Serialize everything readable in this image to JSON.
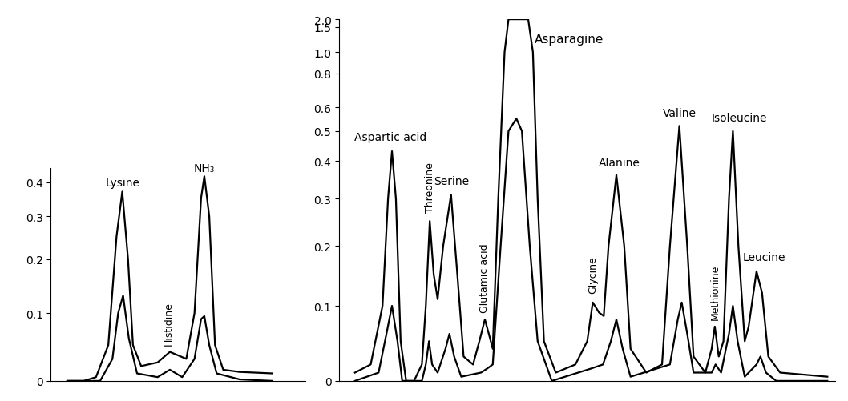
{
  "chart_data": [
    {
      "type": "line",
      "xlim": [
        20,
        330
      ],
      "xticks": [],
      "ylim": [
        0,
        0.45
      ],
      "yticks": [
        0,
        0.1,
        0.2,
        0.3,
        0.4
      ],
      "tick_labels": "y",
      "grid": false,
      "series": [
        {
          "color": "#000000",
          "x": [
            40,
            60,
            75,
            90,
            100,
            107,
            114,
            120,
            130,
            150,
            165,
            175,
            185,
            195,
            203,
            207,
            213,
            220,
            230,
            250,
            290
          ],
          "values": [
            0,
            0,
            0.005,
            0.05,
            0.25,
            0.37,
            0.2,
            0.05,
            0.02,
            0.025,
            0.04,
            0.035,
            0.03,
            0.1,
            0.35,
            0.42,
            0.3,
            0.05,
            0.015,
            0.012,
            0.01
          ]
        },
        {
          "color": "#000000",
          "x": [
            40,
            80,
            95,
            102,
            108,
            115,
            125,
            150,
            165,
            180,
            195,
            203,
            207,
            213,
            222,
            250,
            290
          ],
          "values": [
            0,
            0,
            0.03,
            0.1,
            0.13,
            0.06,
            0.01,
            0.005,
            0.015,
            0.005,
            0.03,
            0.09,
            0.095,
            0.05,
            0.01,
            0.002,
            0
          ]
        }
      ],
      "annotations": [
        {
          "text": "Lysine",
          "x": 108,
          "y": 0.38
        },
        {
          "text": "Histidine",
          "x": 163,
          "y": 0.05
        },
        {
          "text": "NH₃",
          "x": 207,
          "y": 0.43
        }
      ]
    },
    {
      "type": "line",
      "xlim": [
        420,
        1050
      ],
      "xticks": [],
      "ylim": [
        0,
        2.0
      ],
      "yticks": [
        0,
        0.1,
        0.2,
        0.3,
        0.4,
        0.5,
        0.6,
        0.8,
        1.0,
        1.5,
        2.0
      ],
      "tick_labels": "y",
      "grid": false,
      "series": [
        {
          "color": "#000000",
          "x": [
            440,
            460,
            475,
            482,
            487,
            492,
            498,
            505,
            515,
            525,
            530,
            535,
            540,
            545,
            552,
            562,
            570,
            578,
            590,
            598,
            605,
            610,
            615,
            622,
            630,
            635,
            660,
            666,
            672,
            680,
            695,
            720,
            735,
            742,
            750,
            756,
            762,
            772,
            782,
            790,
            810,
            830,
            840,
            852,
            862,
            870,
            885,
            893,
            897,
            902,
            908,
            915,
            920,
            927,
            935,
            940,
            950,
            957,
            965,
            980,
            1040
          ],
          "values": [
            0.01,
            0.02,
            0.1,
            0.3,
            0.43,
            0.3,
            0.05,
            0.0,
            0.0,
            0.02,
            0.1,
            0.25,
            0.15,
            0.11,
            0.2,
            0.31,
            0.15,
            0.03,
            0.02,
            0.05,
            0.08,
            0.06,
            0.04,
            0.3,
            1.0,
            2.0,
            2.0,
            1.0,
            0.3,
            0.05,
            0.01,
            0.02,
            0.05,
            0.105,
            0.09,
            0.085,
            0.2,
            0.36,
            0.2,
            0.04,
            0.01,
            0.02,
            0.2,
            0.52,
            0.2,
            0.03,
            0.01,
            0.04,
            0.07,
            0.03,
            0.05,
            0.3,
            0.5,
            0.2,
            0.05,
            0.07,
            0.155,
            0.12,
            0.03,
            0.01,
            0.005
          ]
        },
        {
          "color": "#000000",
          "x": [
            440,
            470,
            480,
            487,
            494,
            500,
            525,
            530,
            534,
            538,
            545,
            555,
            560,
            566,
            575,
            600,
            608,
            615,
            625,
            635,
            645,
            652,
            662,
            672,
            690,
            740,
            755,
            765,
            772,
            780,
            790,
            840,
            850,
            855,
            862,
            870,
            893,
            898,
            905,
            915,
            920,
            926,
            935,
            950,
            955,
            962,
            975,
            1040
          ],
          "values": [
            0,
            0.01,
            0.06,
            0.1,
            0.05,
            0.0,
            0,
            0.02,
            0.05,
            0.02,
            0.01,
            0.04,
            0.06,
            0.03,
            0.005,
            0.01,
            0.015,
            0.02,
            0.2,
            0.5,
            0.55,
            0.5,
            0.2,
            0.05,
            0,
            0.015,
            0.02,
            0.05,
            0.08,
            0.04,
            0.005,
            0.02,
            0.08,
            0.105,
            0.06,
            0.01,
            0.01,
            0.02,
            0.01,
            0.06,
            0.1,
            0.05,
            0.005,
            0.02,
            0.03,
            0.01,
            0.0,
            0
          ]
        }
      ],
      "annotations": [
        {
          "text": "Aspartic acid",
          "x": 485,
          "y": 0.46
        },
        {
          "text": "Threonine",
          "x": 535,
          "y": 0.27
        },
        {
          "text": "Serine",
          "x": 563,
          "y": 0.33
        },
        {
          "text": "Glutamic acid",
          "x": 605,
          "y": 0.09
        },
        {
          "text": "Asparagine",
          "x": 668,
          "y": 1.2
        },
        {
          "text": "Glycine",
          "x": 742,
          "y": 0.12
        },
        {
          "text": "Alanine",
          "x": 776,
          "y": 0.38
        },
        {
          "text": "Valine",
          "x": 852,
          "y": 0.55
        },
        {
          "text": "Methionine",
          "x": 897,
          "y": 0.08
        },
        {
          "text": "Isoleucine",
          "x": 928,
          "y": 0.53
        },
        {
          "text": "Leucine",
          "x": 960,
          "y": 0.17
        }
      ]
    }
  ]
}
